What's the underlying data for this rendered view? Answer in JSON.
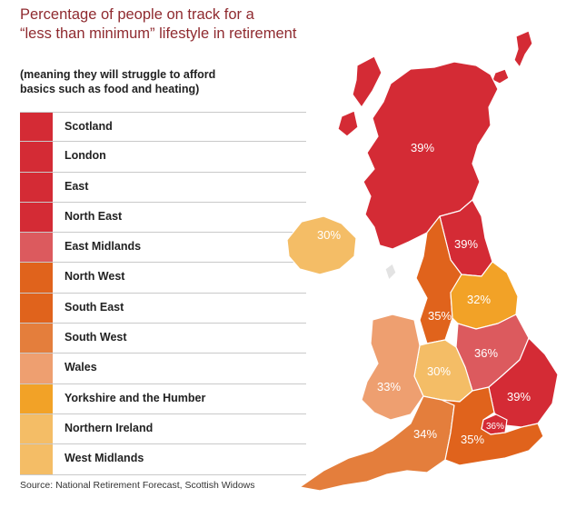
{
  "title_line1": "Percentage of people on track for a",
  "title_line2": "“less than minimum” lifestyle in retirement",
  "subtitle_line1": "(meaning they will struggle to afford",
  "subtitle_line2": "basics such as food and heating)",
  "legend": [
    {
      "label": "Scotland",
      "color": "#d42b35"
    },
    {
      "label": "London",
      "color": "#d42b35"
    },
    {
      "label": "East",
      "color": "#d42b35"
    },
    {
      "label": "North East",
      "color": "#d42b35"
    },
    {
      "label": "East Midlands",
      "color": "#dc5a5e"
    },
    {
      "label": "North West",
      "color": "#e0631c"
    },
    {
      "label": "South East",
      "color": "#e0631c"
    },
    {
      "label": "South West",
      "color": "#e47e3c"
    },
    {
      "label": "Wales",
      "color": "#ee9f70"
    },
    {
      "label": "Yorkshire and the Humber",
      "color": "#f2a227"
    },
    {
      "label": "Northern Ireland",
      "color": "#f4bd66"
    },
    {
      "label": "West Midlands",
      "color": "#f4bd66"
    }
  ],
  "map_labels": {
    "scotland": "39%",
    "northern_ireland": "30%",
    "north_east": "39%",
    "yorkshire": "32%",
    "north_west": "35%",
    "east_midlands": "36%",
    "west_midlands": "30%",
    "wales": "33%",
    "east": "39%",
    "london": "36%",
    "south_west": "34%",
    "south_east": "35%"
  },
  "source": "Source: National Retirement Forecast, Scottish Widows"
}
